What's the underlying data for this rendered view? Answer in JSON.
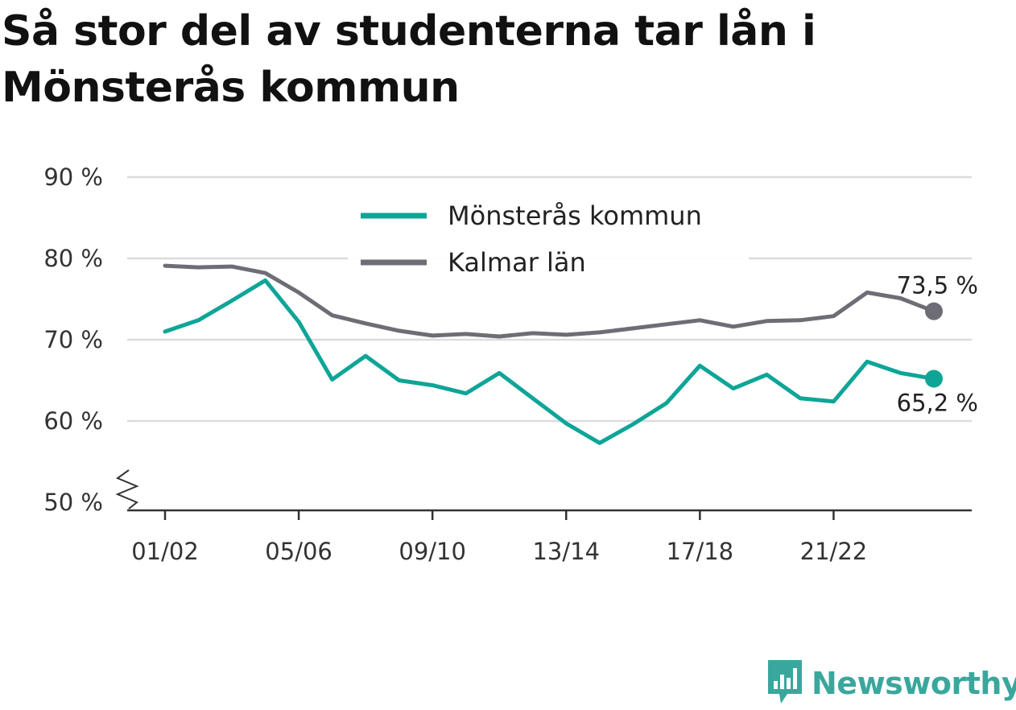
{
  "title": "Så stor del av studenterna tar lån i Mönsterås kommun",
  "brand": {
    "name": "Newsworthy",
    "icon": "newsworthy-logo-icon",
    "color": "#3aa79d"
  },
  "chart_data": {
    "type": "line",
    "title": "Så stor del av studenterna tar lån i Mönsterås kommun",
    "y_tick_labels": [
      "50 %",
      "60 %",
      "70 %",
      "80 %",
      "90 %"
    ],
    "y_ticks": [
      50,
      60,
      70,
      80,
      90
    ],
    "ylim": [
      50,
      90
    ],
    "y_axis_break": true,
    "grid": true,
    "legend_position": "top-center",
    "x_tick_labels": [
      "01/02",
      "05/06",
      "09/10",
      "13/14",
      "17/18",
      "21/22"
    ],
    "x": [
      "01/02",
      "02/03",
      "03/04",
      "04/05",
      "05/06",
      "06/07",
      "07/08",
      "08/09",
      "09/10",
      "10/11",
      "11/12",
      "12/13",
      "13/14",
      "14/15",
      "15/16",
      "16/17",
      "17/18",
      "18/19",
      "19/20",
      "20/21",
      "21/22",
      "22/23",
      "23/24",
      "24/25"
    ],
    "series": [
      {
        "name": "Mönsterås kommun",
        "color": "#0ea597",
        "values": [
          71.0,
          72.4,
          74.8,
          77.3,
          72.2,
          65.1,
          68.0,
          65.0,
          64.4,
          63.4,
          65.9,
          62.8,
          59.7,
          57.3,
          59.6,
          62.2,
          66.8,
          64.0,
          65.7,
          62.8,
          62.4,
          67.3,
          65.9,
          65.2
        ],
        "end_label": "65,2 %"
      },
      {
        "name": "Kalmar län",
        "color": "#6e6d75",
        "values": [
          79.1,
          78.9,
          79.0,
          78.2,
          75.8,
          73.0,
          72.0,
          71.1,
          70.5,
          70.7,
          70.4,
          70.8,
          70.6,
          70.9,
          71.4,
          71.9,
          72.4,
          71.6,
          72.3,
          72.4,
          72.9,
          75.8,
          75.1,
          73.5
        ],
        "end_label": "73,5 %"
      }
    ]
  }
}
